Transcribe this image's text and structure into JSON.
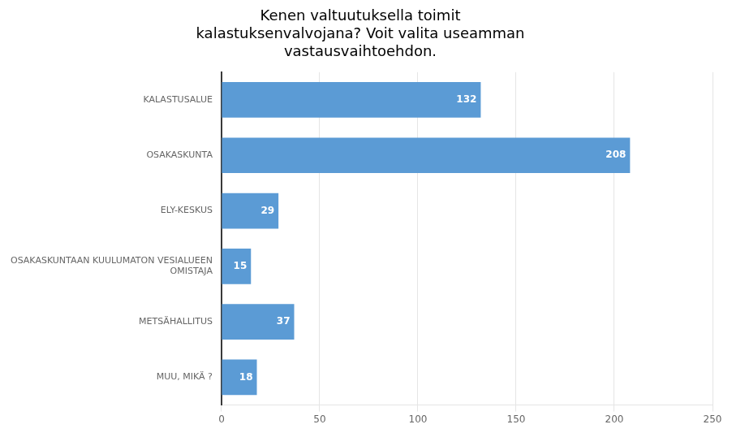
{
  "chart_data": {
    "type": "bar",
    "orientation": "horizontal",
    "title": "Kenen valtuutuksella toimit\nkalastuksenvalvojana? Voit valita useamman\nvastausvaihtoehdon.",
    "categories": [
      "KALASTUSALUE",
      "OSAKASKUNTA",
      "ELY-KESKUS",
      "OSAKASKUNTAAN KUULUMATON VESIALUEEN\nOMISTAJA",
      "METSÄHALLITUS",
      "MUU, MIKÄ ?"
    ],
    "values": [
      132,
      208,
      29,
      15,
      37,
      18
    ],
    "color": "#5b9bd5",
    "xlim": [
      0,
      250
    ],
    "xticks": [
      0,
      50,
      100,
      150,
      200,
      250
    ],
    "grid": true,
    "data_labels": true
  }
}
